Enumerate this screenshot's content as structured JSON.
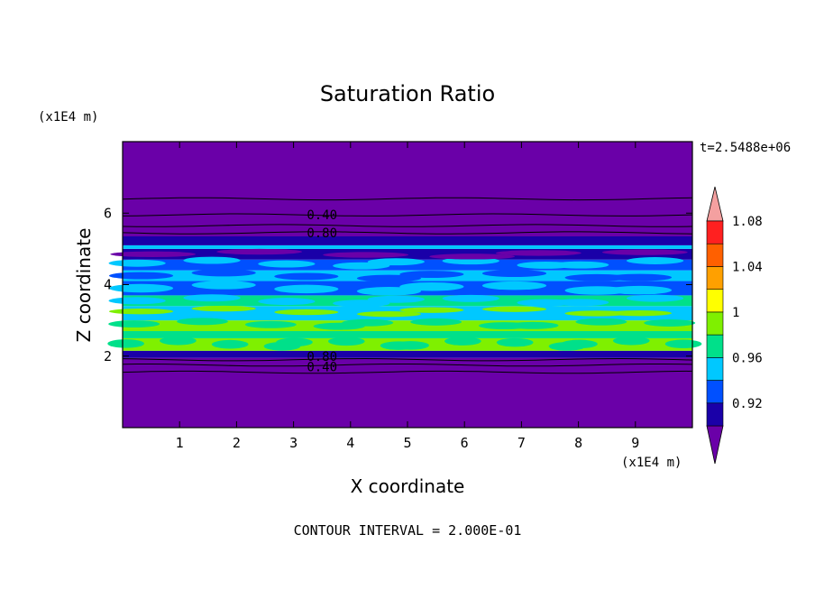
{
  "chart_data": {
    "type": "heatmap",
    "title": "Saturation Ratio",
    "xlabel": "X coordinate",
    "ylabel": "Z coordinate",
    "x_unit": "(x1E4 m)",
    "y_unit": "(x1E4 m)",
    "time_label": "t=2.5488e+06",
    "footer": "CONTOUR INTERVAL = 2.000E-01",
    "xlim": [
      0,
      10
    ],
    "ylim": [
      0,
      8
    ],
    "x_ticks": [
      "1",
      "2",
      "3",
      "4",
      "5",
      "6",
      "7",
      "8",
      "9"
    ],
    "y_ticks": [
      "2",
      "4",
      "6"
    ],
    "colorbar_labels": [
      "0.92",
      "0.96",
      "1",
      "1.04",
      "1.08"
    ],
    "colorbar_colors": [
      "#6a00a8",
      "#1a00a8",
      "#0050ff",
      "#00c8ff",
      "#00e08a",
      "#7ff000",
      "#ffff00",
      "#ffa000",
      "#ff6000",
      "#ff2020",
      "#f4a0a0"
    ],
    "contour_labels": [
      "0.40",
      "0.80",
      "0.80",
      "0.40"
    ],
    "bands": [
      {
        "z0": 0,
        "z1": 1.95,
        "color": "#6a00a8"
      },
      {
        "z0": 1.95,
        "z1": 2.15,
        "color": "#1a00a8"
      },
      {
        "z0": 2.15,
        "z1": 2.5,
        "color": "#7ff000"
      },
      {
        "z0": 2.5,
        "z1": 2.7,
        "color": "#00e08a"
      },
      {
        "z0": 2.7,
        "z1": 3.0,
        "color": "#7ff000"
      },
      {
        "z0": 3.0,
        "z1": 3.4,
        "color": "#00c8ff"
      },
      {
        "z0": 3.4,
        "z1": 3.7,
        "color": "#00e08a"
      },
      {
        "z0": 3.7,
        "z1": 4.1,
        "color": "#0050ff"
      },
      {
        "z0": 4.1,
        "z1": 4.4,
        "color": "#00c8ff"
      },
      {
        "z0": 4.4,
        "z1": 4.7,
        "color": "#0050ff"
      },
      {
        "z0": 4.7,
        "z1": 5.0,
        "color": "#1a00a8"
      },
      {
        "z0": 5.0,
        "z1": 5.1,
        "color": "#00c8ff"
      },
      {
        "z0": 5.1,
        "z1": 5.35,
        "color": "#1a00a8"
      },
      {
        "z0": 5.35,
        "z1": 8.0,
        "color": "#6a00a8"
      }
    ],
    "contour_levels_z": [
      1.55,
      1.75,
      1.9,
      5.45,
      5.65,
      5.95,
      6.4
    ]
  }
}
